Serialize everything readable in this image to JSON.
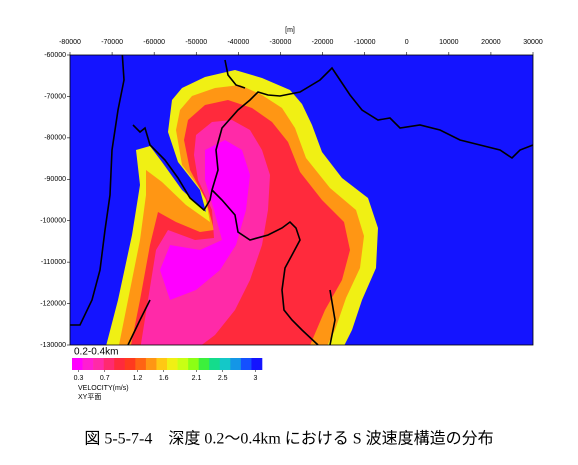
{
  "chart_data": {
    "type": "map",
    "unit_label": "[m]",
    "xlim": [
      -80000,
      30000
    ],
    "xticks": [
      -80000,
      -70000,
      -60000,
      -50000,
      -40000,
      -30000,
      -20000,
      -10000,
      0,
      10000,
      20000,
      30000
    ],
    "ylim": [
      -130000,
      -60000
    ],
    "yticks": [
      -60000,
      -70000,
      -80000,
      -90000,
      -100000,
      -110000,
      -120000,
      -130000
    ],
    "colorbar": {
      "title": "0.2-0.4km",
      "lim": [
        0.2,
        3.1
      ],
      "ticks": [
        0.3,
        0.7,
        1.2,
        1.6,
        2.1,
        2.5,
        3
      ],
      "colors": [
        "#ff00ff",
        "#ff1ed2",
        "#ff2aa8",
        "#ff2a70",
        "#ff2a3c",
        "#ff3a1e",
        "#ff6414",
        "#ff9614",
        "#ffc814",
        "#f0f014",
        "#c8ff14",
        "#8cff14",
        "#3cf03c",
        "#14dc8c",
        "#14c8c8",
        "#1496e6",
        "#1450ff",
        "#1414ff"
      ],
      "label": "VELOCITY(m/s)",
      "plane": "XY平面"
    },
    "caption": "図 5-5-7-4　深度 0.2～0.4km における S 波速度構造の分布"
  }
}
